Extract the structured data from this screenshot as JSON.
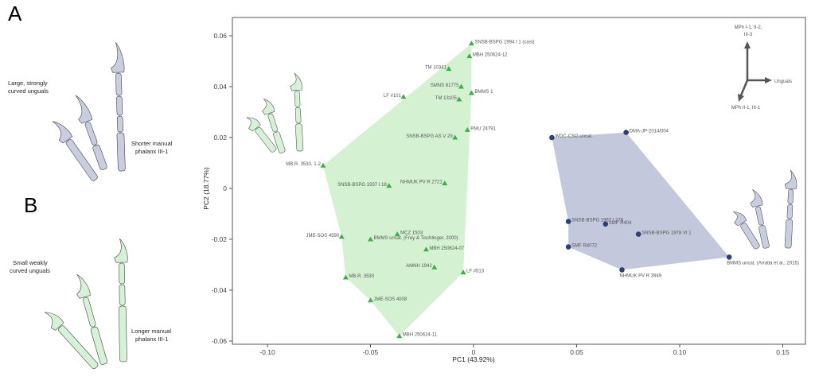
{
  "panels": {
    "A": {
      "letter": "A",
      "label_unguals": [
        "Large, strongly",
        "curved unguals"
      ],
      "label_phalanx": [
        "Shorter manual",
        "phalanx III-1"
      ]
    },
    "B": {
      "letter": "B",
      "label_unguals": [
        "Small weakly",
        "curved unguals"
      ],
      "label_phalanx": [
        "Longer manual",
        "phalanx III-1"
      ]
    }
  },
  "loadings": {
    "up": [
      "MPh I-1, II-2,",
      "III-3"
    ],
    "right": "Unguals",
    "down": "MPh II-1, III-1"
  },
  "colors": {
    "green_fill": "#d4f2d2",
    "green_point": "#3fae49",
    "blue_fill": "#c3c8dc",
    "blue_point": "#2b3f7a"
  },
  "chart_data": {
    "type": "scatter",
    "xlabel": "PC1 (43.92%)",
    "ylabel": "PC2 (18.77%)",
    "xlim": [
      -0.115,
      0.163
    ],
    "ylim": [
      -0.06,
      0.066
    ],
    "xticks": [
      "-0.10",
      "-0.05",
      "0",
      "0.05",
      "0.10",
      "0.15"
    ],
    "xtick_values": [
      -0.1,
      -0.05,
      0,
      0.05,
      0.1,
      0.15
    ],
    "yticks": [
      "0.06",
      "0.04",
      "0.02",
      "0",
      "-0.02",
      "-0.04",
      "-0.06"
    ],
    "ytick_values": [
      0.06,
      0.04,
      0.02,
      0,
      -0.02,
      -0.04,
      -0.06
    ],
    "series": [
      {
        "name": "green",
        "marker": "triangle",
        "hull": [
          0,
          4,
          17,
          20,
          19,
          18,
          12,
          9
        ],
        "points": [
          {
            "label": "SNSB-BSPG 1994 I 1 (cast)",
            "x": -0.001,
            "y": 0.057
          },
          {
            "label": "MBH 250624-12",
            "x": -0.002,
            "y": 0.052
          },
          {
            "label": "TM 10341",
            "x": -0.012,
            "y": 0.047
          },
          {
            "label": "SMNS 81775",
            "x": -0.006,
            "y": 0.04
          },
          {
            "label": "BMMS 1",
            "x": -0.001,
            "y": 0.0375
          },
          {
            "label": "TM 13105",
            "x": -0.007,
            "y": 0.035
          },
          {
            "label": "LF #101",
            "x": -0.034,
            "y": 0.036
          },
          {
            "label": "PMU 24791",
            "x": -0.003,
            "y": 0.023
          },
          {
            "label": "SNSB-BSPG AS V 29",
            "x": -0.009,
            "y": 0.02
          },
          {
            "label": "MB.R. 3533. 1-2",
            "x": -0.073,
            "y": 0.009
          },
          {
            "label": "SNSB-BSPG 1937 I 18",
            "x": -0.041,
            "y": 0.001
          },
          {
            "label": "NHMUK PV R 2721",
            "x": -0.014,
            "y": 0.002
          },
          {
            "label": "JME-SOS 4590",
            "x": -0.064,
            "y": -0.019
          },
          {
            "label": "BMMS uncat. (Frey & Tischlinger, 2000)",
            "x": -0.05,
            "y": -0.02
          },
          {
            "label": "MCZ 1503",
            "x": -0.037,
            "y": -0.018
          },
          {
            "label": "MBH 250624-07",
            "x": -0.023,
            "y": -0.024
          },
          {
            "label": "AMNH 1942",
            "x": -0.019,
            "y": -0.031
          },
          {
            "label": "LF #513",
            "x": -0.005,
            "y": -0.033
          },
          {
            "label": "MB.R. 3530",
            "x": -0.062,
            "y": -0.035
          },
          {
            "label": "JME-SOS 4008",
            "x": -0.05,
            "y": -0.044
          },
          {
            "label": "MBH 250624-11",
            "x": -0.036,
            "y": -0.058
          }
        ]
      },
      {
        "name": "blue",
        "marker": "circle",
        "hull": [
          0,
          1,
          7,
          6,
          5,
          2
        ],
        "points": [
          {
            "label": "WDC-CSG uncat.",
            "x": 0.038,
            "y": 0.02
          },
          {
            "label": "DMA-JP-2014/004",
            "x": 0.074,
            "y": 0.022
          },
          {
            "label": "SNSB-BSPG 1967 I 276",
            "x": 0.046,
            "y": -0.013
          },
          {
            "label": "SMF R404",
            "x": 0.064,
            "y": -0.014
          },
          {
            "label": "SNSB-BSPG 1878 VI 1",
            "x": 0.08,
            "y": -0.018
          },
          {
            "label": "SMF R4072",
            "x": 0.046,
            "y": -0.023
          },
          {
            "label": "NHMUK PV R 3949",
            "x": 0.072,
            "y": -0.032
          },
          {
            "label": "BMMS uncat. (Arratia et al., 2015)",
            "x": 0.124,
            "y": -0.027
          }
        ]
      }
    ]
  }
}
